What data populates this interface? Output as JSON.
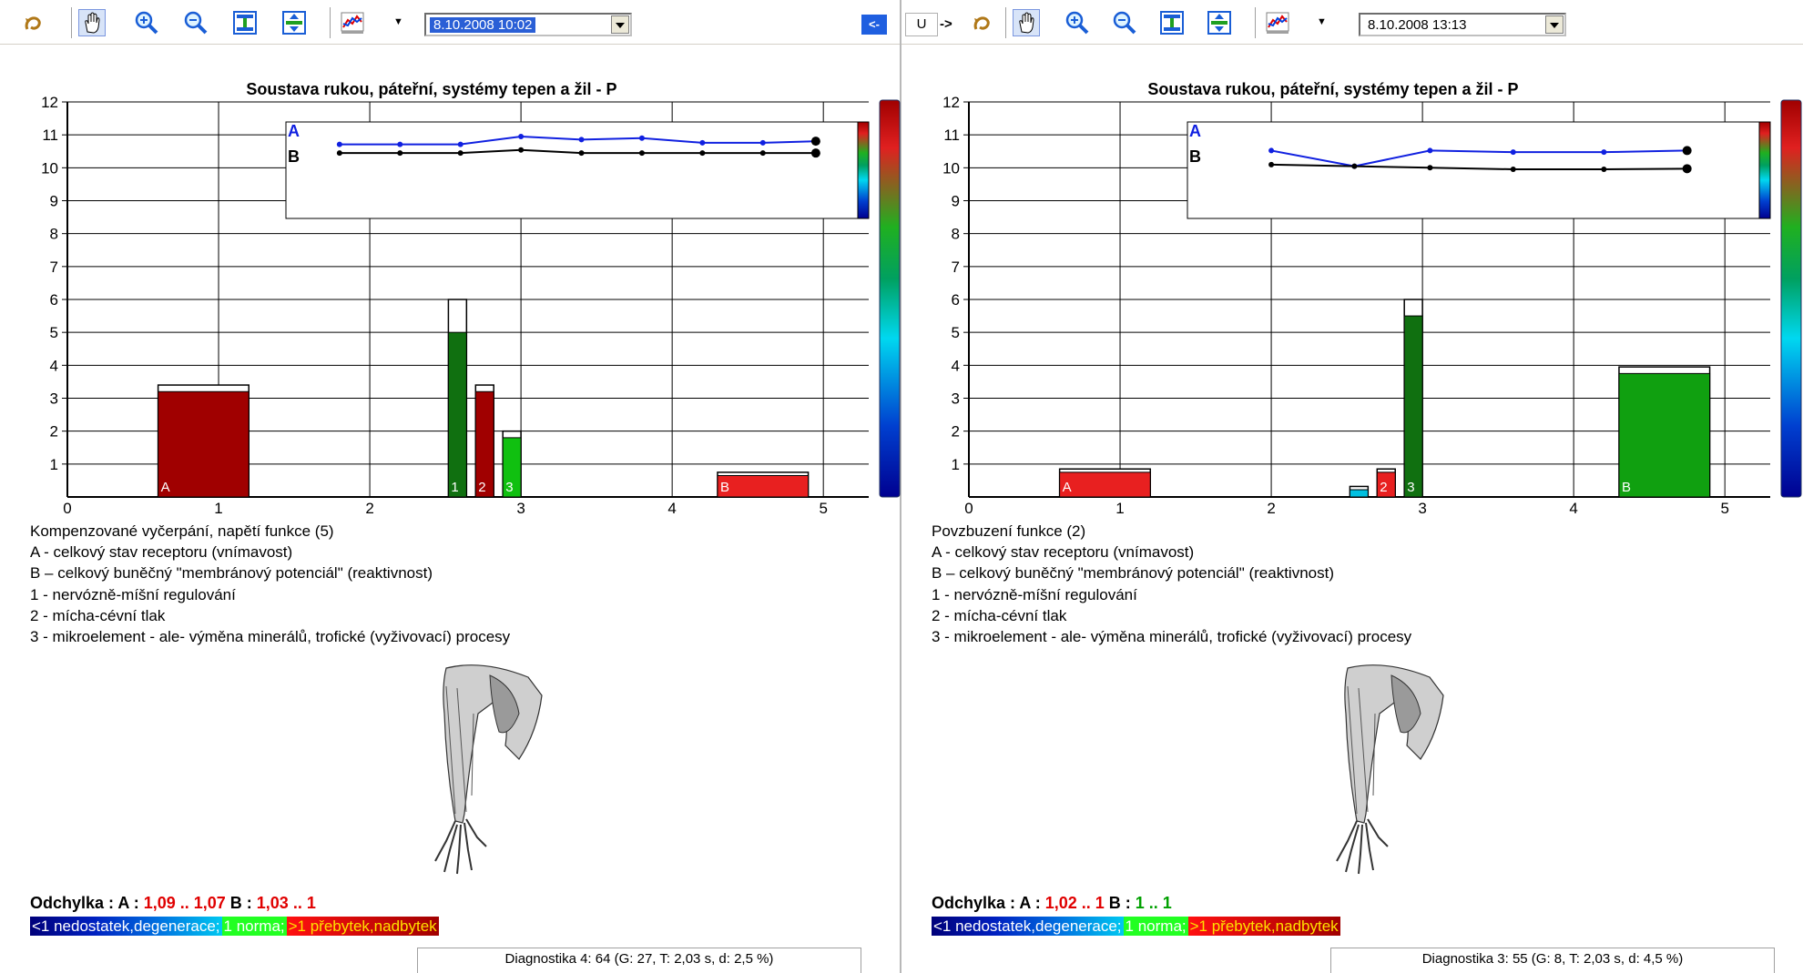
{
  "left": {
    "date": "8.10.2008 10:02",
    "chart_data": {
      "type": "bar",
      "title": "Soustava rukou, páteřní, systémy tepen a žil - P",
      "y_ticks": [
        "1",
        "2",
        "3",
        "4",
        "5",
        "6",
        "7",
        "8",
        "9",
        "10",
        "11",
        "12"
      ],
      "x_ticks": [
        "0",
        "1",
        "2",
        "3",
        "4",
        "5"
      ],
      "ylim": [
        0,
        12
      ],
      "xlim": [
        0,
        5.3
      ],
      "bars": [
        {
          "label": "A",
          "x0": 0.6,
          "x1": 1.2,
          "value": 3.2,
          "cap": 3.4,
          "color": "#a00000"
        },
        {
          "label": "1",
          "x0": 2.52,
          "x1": 2.64,
          "value": 5.0,
          "cap": 6.0,
          "color": "#107010"
        },
        {
          "label": "2",
          "x0": 2.7,
          "x1": 2.82,
          "value": 3.2,
          "cap": 3.4,
          "color": "#a00000"
        },
        {
          "label": "3",
          "x0": 2.88,
          "x1": 3.0,
          "value": 1.8,
          "cap": 2.0,
          "color": "#10c010"
        },
        {
          "label": "B",
          "x0": 4.3,
          "x1": 4.9,
          "value": 0.65,
          "cap": 0.75,
          "color": "#e82020"
        }
      ],
      "inset": {
        "series_A_label": "A",
        "series_B_label": "B",
        "x": [
          1.8,
          2.2,
          2.6,
          3.0,
          3.4,
          3.8,
          4.2,
          4.6,
          4.95
        ],
        "series_A": [
          10.9,
          10.9,
          10.9,
          11.15,
          11.05,
          11.1,
          10.95,
          10.95,
          11.0
        ],
        "series_B": [
          10.62,
          10.62,
          10.62,
          10.72,
          10.62,
          10.62,
          10.62,
          10.62,
          10.62
        ]
      }
    },
    "legend": [
      "Kompenzované vyčerpání, napětí funkce (5)",
      "A - celkový stav receptoru (vnímavost)",
      "B – celkový buněčný \"membránový potenciál\" (reaktivnost)",
      "1 - nervózně-míšní regulování",
      "2 - mícha-cévní tlak",
      "3 - mikroelement - ale- výměna minerálů, trofické (vyživovací) procesy"
    ],
    "deviation": {
      "prefix": "Odchylka : A : ",
      "a_value": "1,09 .. 1,07",
      "b_prefix": " B : ",
      "b_value": "1,03 ..   1"
    },
    "status": "Diagnostika 4: 64 (G: 27, T: 2,03 s, d: 2,5 %)"
  },
  "right": {
    "date": "8.10.2008 13:13",
    "chart_data": {
      "type": "bar",
      "title": "Soustava rukou, páteřní, systémy tepen a žil - P",
      "y_ticks": [
        "1",
        "2",
        "3",
        "4",
        "5",
        "6",
        "7",
        "8",
        "9",
        "10",
        "11",
        "12"
      ],
      "x_ticks": [
        "0",
        "1",
        "2",
        "3",
        "4",
        "5"
      ],
      "ylim": [
        0,
        12
      ],
      "xlim": [
        0,
        5.3
      ],
      "bars": [
        {
          "label": "A",
          "x0": 0.6,
          "x1": 1.2,
          "value": 0.75,
          "cap": 0.85,
          "color": "#e82020"
        },
        {
          "label": "",
          "x0": 2.52,
          "x1": 2.64,
          "value": 0.22,
          "cap": 0.32,
          "color": "#00c0e0"
        },
        {
          "label": "2",
          "x0": 2.7,
          "x1": 2.82,
          "value": 0.75,
          "cap": 0.85,
          "color": "#e82020"
        },
        {
          "label": "3",
          "x0": 2.88,
          "x1": 3.0,
          "value": 5.5,
          "cap": 6.0,
          "color": "#107010"
        },
        {
          "label": "B",
          "x0": 4.3,
          "x1": 4.9,
          "value": 3.75,
          "cap": 3.95,
          "color": "#10a010"
        }
      ],
      "inset": {
        "series_A_label": "A",
        "series_B_label": "B",
        "x": [
          2.0,
          2.55,
          3.05,
          3.6,
          4.2,
          4.75
        ],
        "series_A": [
          10.7,
          10.2,
          10.7,
          10.65,
          10.65,
          10.7
        ],
        "series_B": [
          10.25,
          10.2,
          10.15,
          10.1,
          10.1,
          10.12
        ]
      }
    },
    "legend": [
      "Povzbuzení funkce (2)",
      "A - celkový stav receptoru (vnímavost)",
      "B – celkový buněčný \"membránový potenciál\" (reaktivnost)",
      "1 - nervózně-míšní regulování",
      "2 - mícha-cévní tlak",
      "3 - mikroelement - ale- výměna minerálů, trofické (vyživovací) procesy"
    ],
    "deviation": {
      "prefix": "Odchylka : A : ",
      "a_value": "1,02 ..   1",
      "b_prefix": "    B :  ",
      "b_value": "1   ..   1"
    },
    "status": "Diagnostika 3: 55 (G: 8, T: 2,03 s, d: 4,5 %)"
  },
  "scale": {
    "low": "<1 nedostatek,degenerace;",
    "norm": "1 norma;",
    "high": ">1 přebytek,nadbytek"
  },
  "nav": {
    "prev": "<-",
    "u": "U",
    "next": "->"
  },
  "icons": [
    "undo-curve-icon",
    "hand-pan-icon",
    "zoom-in-icon",
    "zoom-out-icon",
    "fit-vertical-icon",
    "fit-horizontal-icon",
    "chart-type-icon"
  ]
}
